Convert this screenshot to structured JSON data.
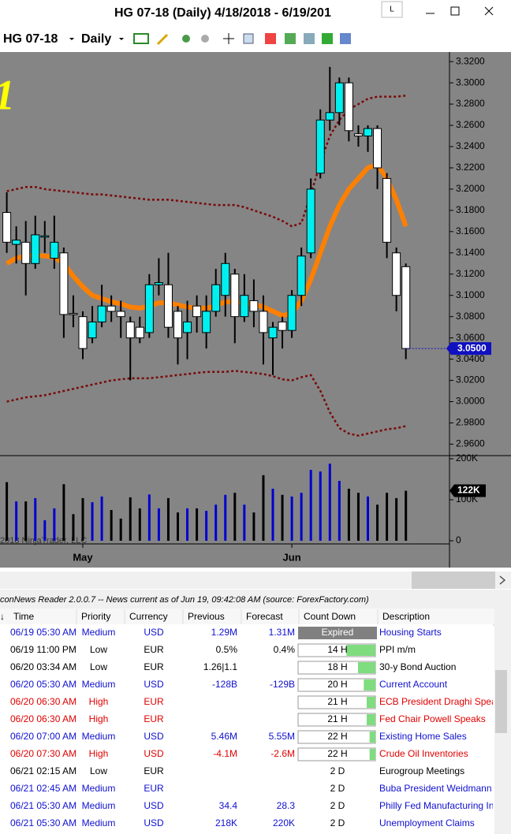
{
  "window": {
    "title": "HG 07-18 (Daily)  4/18/2018 - 6/19/201",
    "button": "L"
  },
  "toolbar": {
    "instrument": "HG 07-18",
    "period": "Daily"
  },
  "chart_data": [
    {
      "type": "candlestick",
      "annotation": "1",
      "categories": [
        null,
        null,
        null,
        null,
        null,
        null,
        null,
        null,
        "May",
        null,
        null,
        null,
        null,
        null,
        null,
        null,
        null,
        null,
        null,
        null,
        null,
        null,
        null,
        null,
        null,
        null,
        null,
        null,
        null,
        null,
        "Jun",
        null,
        null,
        null,
        null,
        null,
        null,
        null,
        null,
        null,
        null,
        null,
        null
      ],
      "open": [
        3.178,
        3.148,
        3.15,
        3.13,
        3.155,
        3.135,
        3.14,
        3.083,
        3.08,
        3.06,
        3.075,
        3.09,
        3.085,
        3.075,
        3.07,
        3.065,
        3.11,
        3.11,
        3.085,
        3.065,
        3.09,
        3.065,
        3.085,
        3.1,
        3.12,
        3.08,
        3.095,
        3.085,
        3.06,
        3.075,
        3.067,
        3.1,
        3.14,
        3.215,
        3.265,
        3.272,
        3.3,
        3.252,
        3.25,
        3.257,
        3.21,
        3.14,
        3.127
      ],
      "high": [
        3.197,
        3.165,
        3.17,
        3.175,
        3.17,
        3.175,
        3.145,
        3.1,
        3.085,
        3.09,
        3.11,
        3.1,
        3.095,
        3.08,
        3.08,
        3.12,
        3.135,
        3.14,
        3.09,
        3.095,
        3.1,
        3.1,
        3.125,
        3.14,
        3.125,
        3.12,
        3.115,
        3.1,
        3.075,
        3.08,
        3.105,
        3.145,
        3.21,
        3.275,
        3.315,
        3.305,
        3.305,
        3.26,
        3.26,
        3.26,
        3.215,
        3.145,
        3.13
      ],
      "low": [
        3.14,
        3.13,
        3.1,
        3.125,
        3.14,
        3.125,
        3.06,
        3.07,
        3.04,
        3.055,
        3.07,
        3.075,
        3.06,
        3.02,
        3.055,
        3.06,
        3.1,
        3.06,
        3.035,
        3.04,
        3.065,
        3.05,
        3.08,
        3.08,
        3.055,
        3.075,
        3.07,
        3.035,
        3.025,
        3.05,
        3.06,
        3.09,
        3.135,
        3.21,
        3.255,
        3.26,
        3.245,
        3.24,
        3.235,
        3.2,
        3.135,
        3.085,
        3.04
      ],
      "close": [
        3.15,
        3.152,
        3.13,
        3.157,
        3.156,
        3.15,
        3.082,
        3.082,
        3.05,
        3.075,
        3.09,
        3.085,
        3.08,
        3.06,
        3.06,
        3.11,
        3.112,
        3.07,
        3.06,
        3.075,
        3.08,
        3.085,
        3.11,
        3.13,
        3.08,
        3.1,
        3.085,
        3.065,
        3.07,
        3.067,
        3.1,
        3.137,
        3.2,
        3.265,
        3.272,
        3.3,
        3.255,
        3.25,
        3.257,
        3.22,
        3.15,
        3.1,
        3.05
      ],
      "up_color": "#00f0f0",
      "down_color": "#ffffff",
      "moving_average": {
        "color": "#ff8000",
        "values": [
          3.13,
          3.135,
          3.137,
          3.138,
          3.137,
          3.136,
          3.13,
          3.118,
          3.108,
          3.1,
          3.097,
          3.094,
          3.092,
          3.089,
          3.088,
          3.09,
          3.093,
          3.093,
          3.091,
          3.089,
          3.088,
          3.088,
          3.09,
          3.094,
          3.094,
          3.093,
          3.092,
          3.089,
          3.085,
          3.081,
          3.083,
          3.095,
          3.115,
          3.14,
          3.165,
          3.185,
          3.2,
          3.21,
          3.22,
          3.223,
          3.21,
          3.19,
          3.165
        ]
      },
      "upper_band": {
        "color": "#7a0a0a",
        "values": [
          3.198,
          3.2,
          3.202,
          3.202,
          3.2,
          3.199,
          3.198,
          3.197,
          3.196,
          3.195,
          3.195,
          3.194,
          3.193,
          3.192,
          3.191,
          3.19,
          3.19,
          3.19,
          3.189,
          3.188,
          3.187,
          3.186,
          3.185,
          3.185,
          3.185,
          3.183,
          3.18,
          3.177,
          3.174,
          3.17,
          3.165,
          3.168,
          3.195,
          3.225,
          3.25,
          3.265,
          3.275,
          3.28,
          3.285,
          3.287,
          3.287,
          3.287,
          3.288
        ]
      },
      "lower_band": {
        "color": "#7a0a0a",
        "values": [
          3.0,
          3.002,
          3.004,
          3.005,
          3.006,
          3.008,
          3.01,
          3.012,
          3.014,
          3.016,
          3.018,
          3.02,
          3.021,
          3.022,
          3.022,
          3.022,
          3.023,
          3.024,
          3.025,
          3.026,
          3.027,
          3.028,
          3.028,
          3.028,
          3.029,
          3.028,
          3.027,
          3.026,
          3.024,
          3.021,
          3.02,
          3.023,
          3.025,
          3.01,
          2.99,
          2.975,
          2.97,
          2.968,
          2.97,
          2.972,
          2.974,
          2.975,
          2.977
        ]
      },
      "ylim": [
        2.9492,
        3.329
      ],
      "yticks": [
        {
          "value": 3.32,
          "label": "3.3200"
        },
        {
          "value": 3.3,
          "label": "3.3000"
        },
        {
          "value": 3.28,
          "label": "3.2800"
        },
        {
          "value": 3.26,
          "label": "3.2600"
        },
        {
          "value": 3.24,
          "label": "3.2400"
        },
        {
          "value": 3.22,
          "label": "3.2200"
        },
        {
          "value": 3.2,
          "label": "3.2000"
        },
        {
          "value": 3.18,
          "label": "3.1800"
        },
        {
          "value": 3.16,
          "label": "3.1600"
        },
        {
          "value": 3.14,
          "label": "3.1400"
        },
        {
          "value": 3.12,
          "label": "3.1200"
        },
        {
          "value": 3.1,
          "label": "3.1000"
        },
        {
          "value": 3.08,
          "label": "3.0800"
        },
        {
          "value": 3.06,
          "label": "3.0600"
        },
        {
          "value": 3.04,
          "label": "3.0400"
        },
        {
          "value": 3.02,
          "label": "3.0200"
        },
        {
          "value": 3.0,
          "label": "3.0000"
        },
        {
          "value": 2.98,
          "label": "2.9800"
        },
        {
          "value": 2.96,
          "label": "2.9600"
        }
      ],
      "last_price": {
        "value": 3.05,
        "label": "3.0500"
      }
    },
    {
      "type": "volume",
      "watermark": "2018 NinjaTrader, LLC",
      "values": [
        143000,
        96000,
        96000,
        104000,
        50000,
        79000,
        138000,
        65000,
        104000,
        94000,
        108000,
        75000,
        54000,
        106000,
        79000,
        113000,
        79000,
        104000,
        69000,
        79000,
        79000,
        73000,
        88000,
        112000,
        117000,
        88000,
        69000,
        160000,
        127000,
        112000,
        108000,
        117000,
        173000,
        169000,
        188000,
        146000,
        127000,
        117000,
        108000,
        88000,
        117000,
        104000,
        122000
      ],
      "up_color": "#0000d0",
      "down_color": "#000000",
      "ylim": [
        -7700,
        207700
      ],
      "yticks": [
        {
          "value": 200000,
          "label": "200K"
        },
        {
          "value": 100000,
          "label": "100K"
        },
        0
      ],
      "last_value": {
        "value": 122000,
        "label": "122K"
      }
    }
  ],
  "news": {
    "status": "conNews Reader 2.0.0.7  --  News current as of Jun 19, 09:42:08 AM  (source: ForexFactory.com)",
    "sort_marker": "↓",
    "columns": [
      "Time",
      "Priority",
      "Currency",
      "Previous",
      "Forecast",
      "Count Down",
      "Description"
    ],
    "priority_colors": {
      "High": "#e00000",
      "Medium": "#1010d0",
      "Low": "#000000"
    },
    "rows": [
      {
        "time": "06/19 05:30 AM",
        "priority": "Medium",
        "currency": "USD",
        "previous": "1.29M",
        "forecast": "1.31M",
        "countdown": "Expired",
        "description": "Housing Starts"
      },
      {
        "time": "06/19 11:00 PM",
        "priority": "Low",
        "currency": "EUR",
        "previous": "0.5%",
        "forecast": "0.4%",
        "countdown": "14 H",
        "description": "PPI m/m"
      },
      {
        "time": "06/20 03:34 AM",
        "priority": "Low",
        "currency": "EUR",
        "previous": "1.26|1.1",
        "countdown": "18 H",
        "description": "30-y Bond Auction"
      },
      {
        "time": "06/20 05:30 AM",
        "priority": "Medium",
        "currency": "USD",
        "previous": "-128B",
        "forecast": "-129B",
        "countdown": "20 H",
        "description": "Current Account"
      },
      {
        "time": "06/20 06:30 AM",
        "priority": "High",
        "currency": "EUR",
        "countdown": "21 H",
        "description": "ECB President Draghi Spea..."
      },
      {
        "time": "06/20 06:30 AM",
        "priority": "High",
        "currency": "EUR",
        "countdown": "21 H",
        "description": "Fed Chair Powell Speaks"
      },
      {
        "time": "06/20 07:00 AM",
        "priority": "Medium",
        "currency": "USD",
        "previous": "5.46M",
        "forecast": "5.55M",
        "countdown": "22 H",
        "description": "Existing Home Sales"
      },
      {
        "time": "06/20 07:30 AM",
        "priority": "High",
        "currency": "USD",
        "previous": "-4.1M",
        "forecast": "-2.6M",
        "countdown": "22 H",
        "description": "Crude Oil Inventories"
      },
      {
        "time": "06/21 02:15 AM",
        "priority": "Low",
        "currency": "EUR",
        "countdown": "2 D",
        "description": "Eurogroup Meetings"
      },
      {
        "time": "06/21 02:45 AM",
        "priority": "Medium",
        "currency": "EUR",
        "countdown": "2 D",
        "description": "Buba President Weidmann ..."
      },
      {
        "time": "06/21 05:30 AM",
        "priority": "Medium",
        "currency": "USD",
        "previous": "34.4",
        "forecast": "28.3",
        "countdown": "2 D",
        "description": "Philly Fed Manufacturing In..."
      },
      {
        "time": "06/21 05:30 AM",
        "priority": "Medium",
        "currency": "USD",
        "previous": "218K",
        "forecast": "220K",
        "countdown": "2 D",
        "description": "Unemployment Claims"
      }
    ]
  }
}
